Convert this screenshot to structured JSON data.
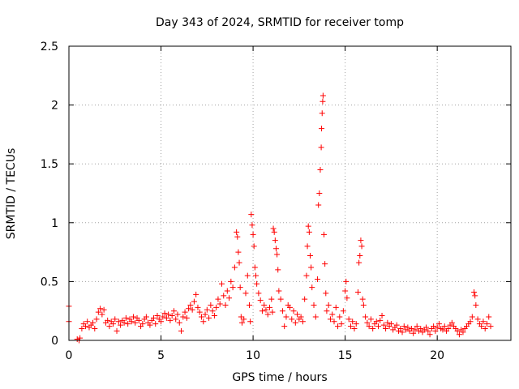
{
  "chart_data": {
    "type": "scatter",
    "title": "Day 343 of 2024, SRMTID for receiver tomp",
    "xlabel": "GPS time / hours",
    "ylabel": "SRMTID / TECUs",
    "xlim": [
      0,
      24
    ],
    "ylim": [
      0,
      2.5
    ],
    "grid": true,
    "marker": "+",
    "series_color": "#ff0000",
    "xticks": [
      {
        "value": 0,
        "label": "0"
      },
      {
        "value": 5,
        "label": "5"
      },
      {
        "value": 10,
        "label": "10"
      },
      {
        "value": 15,
        "label": "15"
      },
      {
        "value": 20,
        "label": "20"
      }
    ],
    "yticks": [
      {
        "value": 0,
        "label": "0"
      },
      {
        "value": 0.5,
        "label": "0.5"
      },
      {
        "value": 1,
        "label": "1"
      },
      {
        "value": 1.5,
        "label": "1.5"
      },
      {
        "value": 2,
        "label": "2"
      },
      {
        "value": 2.5,
        "label": "2.5"
      }
    ],
    "series": [
      {
        "name": "SRMTID",
        "points": [
          [
            0.0,
            0.29
          ],
          [
            0.0,
            0.16
          ],
          [
            0.45,
            0.01
          ],
          [
            0.55,
            0.0
          ],
          [
            0.6,
            0.02
          ],
          [
            0.7,
            0.1
          ],
          [
            0.8,
            0.14
          ],
          [
            0.9,
            0.12
          ],
          [
            1.0,
            0.16
          ],
          [
            1.1,
            0.11
          ],
          [
            1.2,
            0.13
          ],
          [
            1.3,
            0.15
          ],
          [
            1.4,
            0.1
          ],
          [
            1.5,
            0.18
          ],
          [
            1.6,
            0.24
          ],
          [
            1.7,
            0.27
          ],
          [
            1.8,
            0.22
          ],
          [
            1.9,
            0.26
          ],
          [
            2.0,
            0.15
          ],
          [
            2.1,
            0.17
          ],
          [
            2.2,
            0.12
          ],
          [
            2.3,
            0.16
          ],
          [
            2.4,
            0.14
          ],
          [
            2.5,
            0.18
          ],
          [
            2.6,
            0.08
          ],
          [
            2.7,
            0.16
          ],
          [
            2.8,
            0.13
          ],
          [
            2.9,
            0.17
          ],
          [
            3.0,
            0.15
          ],
          [
            3.1,
            0.19
          ],
          [
            3.2,
            0.14
          ],
          [
            3.3,
            0.18
          ],
          [
            3.4,
            0.16
          ],
          [
            3.5,
            0.2
          ],
          [
            3.6,
            0.15
          ],
          [
            3.7,
            0.19
          ],
          [
            3.8,
            0.17
          ],
          [
            3.9,
            0.12
          ],
          [
            4.0,
            0.14
          ],
          [
            4.1,
            0.18
          ],
          [
            4.2,
            0.2
          ],
          [
            4.3,
            0.15
          ],
          [
            4.4,
            0.13
          ],
          [
            4.5,
            0.17
          ],
          [
            4.6,
            0.19
          ],
          [
            4.7,
            0.14
          ],
          [
            4.8,
            0.21
          ],
          [
            4.9,
            0.18
          ],
          [
            5.0,
            0.16
          ],
          [
            5.1,
            0.2
          ],
          [
            5.2,
            0.23
          ],
          [
            5.3,
            0.19
          ],
          [
            5.4,
            0.22
          ],
          [
            5.5,
            0.17
          ],
          [
            5.6,
            0.21
          ],
          [
            5.7,
            0.25
          ],
          [
            5.8,
            0.18
          ],
          [
            5.9,
            0.22
          ],
          [
            6.0,
            0.15
          ],
          [
            6.1,
            0.08
          ],
          [
            6.2,
            0.2
          ],
          [
            6.3,
            0.24
          ],
          [
            6.4,
            0.19
          ],
          [
            6.5,
            0.27
          ],
          [
            6.6,
            0.3
          ],
          [
            6.7,
            0.26
          ],
          [
            6.8,
            0.33
          ],
          [
            6.9,
            0.39
          ],
          [
            7.0,
            0.28
          ],
          [
            7.1,
            0.24
          ],
          [
            7.2,
            0.2
          ],
          [
            7.3,
            0.16
          ],
          [
            7.4,
            0.22
          ],
          [
            7.5,
            0.26
          ],
          [
            7.6,
            0.19
          ],
          [
            7.7,
            0.3
          ],
          [
            7.8,
            0.25
          ],
          [
            7.9,
            0.21
          ],
          [
            8.0,
            0.28
          ],
          [
            8.1,
            0.35
          ],
          [
            8.2,
            0.31
          ],
          [
            8.3,
            0.48
          ],
          [
            8.4,
            0.38
          ],
          [
            8.5,
            0.3
          ],
          [
            8.6,
            0.42
          ],
          [
            8.7,
            0.36
          ],
          [
            8.8,
            0.5
          ],
          [
            8.9,
            0.45
          ],
          [
            9.0,
            0.62
          ],
          [
            9.1,
            0.92
          ],
          [
            9.15,
            0.88
          ],
          [
            9.2,
            0.75
          ],
          [
            9.25,
            0.66
          ],
          [
            9.3,
            0.45
          ],
          [
            9.35,
            0.2
          ],
          [
            9.4,
            0.15
          ],
          [
            9.5,
            0.18
          ],
          [
            9.6,
            0.4
          ],
          [
            9.7,
            0.55
          ],
          [
            9.8,
            0.3
          ],
          [
            9.85,
            0.16
          ],
          [
            9.9,
            1.07
          ],
          [
            9.95,
            0.98
          ],
          [
            10.0,
            0.9
          ],
          [
            10.05,
            0.8
          ],
          [
            10.1,
            0.62
          ],
          [
            10.15,
            0.55
          ],
          [
            10.2,
            0.48
          ],
          [
            10.3,
            0.4
          ],
          [
            10.4,
            0.34
          ],
          [
            10.5,
            0.25
          ],
          [
            10.6,
            0.3
          ],
          [
            10.7,
            0.26
          ],
          [
            10.8,
            0.22
          ],
          [
            10.9,
            0.28
          ],
          [
            11.0,
            0.35
          ],
          [
            11.05,
            0.24
          ],
          [
            11.1,
            0.95
          ],
          [
            11.15,
            0.92
          ],
          [
            11.2,
            0.85
          ],
          [
            11.25,
            0.78
          ],
          [
            11.3,
            0.73
          ],
          [
            11.35,
            0.6
          ],
          [
            11.4,
            0.42
          ],
          [
            11.5,
            0.35
          ],
          [
            11.6,
            0.25
          ],
          [
            11.7,
            0.12
          ],
          [
            11.8,
            0.2
          ],
          [
            11.9,
            0.3
          ],
          [
            12.0,
            0.28
          ],
          [
            12.1,
            0.18
          ],
          [
            12.2,
            0.25
          ],
          [
            12.3,
            0.15
          ],
          [
            12.4,
            0.22
          ],
          [
            12.5,
            0.18
          ],
          [
            12.6,
            0.2
          ],
          [
            12.7,
            0.16
          ],
          [
            12.8,
            0.35
          ],
          [
            12.9,
            0.55
          ],
          [
            12.95,
            0.8
          ],
          [
            13.0,
            0.97
          ],
          [
            13.05,
            0.92
          ],
          [
            13.1,
            0.72
          ],
          [
            13.15,
            0.62
          ],
          [
            13.2,
            0.45
          ],
          [
            13.3,
            0.3
          ],
          [
            13.4,
            0.2
          ],
          [
            13.5,
            0.52
          ],
          [
            13.55,
            1.15
          ],
          [
            13.6,
            1.25
          ],
          [
            13.65,
            1.45
          ],
          [
            13.7,
            1.64
          ],
          [
            13.72,
            1.8
          ],
          [
            13.75,
            1.93
          ],
          [
            13.78,
            2.03
          ],
          [
            13.8,
            2.08
          ],
          [
            13.85,
            0.9
          ],
          [
            13.9,
            0.65
          ],
          [
            13.95,
            0.4
          ],
          [
            14.0,
            0.25
          ],
          [
            14.1,
            0.3
          ],
          [
            14.2,
            0.18
          ],
          [
            14.3,
            0.22
          ],
          [
            14.4,
            0.16
          ],
          [
            14.5,
            0.28
          ],
          [
            14.6,
            0.12
          ],
          [
            14.7,
            0.2
          ],
          [
            14.8,
            0.14
          ],
          [
            14.9,
            0.25
          ],
          [
            15.0,
            0.42
          ],
          [
            15.05,
            0.5
          ],
          [
            15.1,
            0.36
          ],
          [
            15.2,
            0.18
          ],
          [
            15.3,
            0.12
          ],
          [
            15.4,
            0.16
          ],
          [
            15.5,
            0.1
          ],
          [
            15.6,
            0.14
          ],
          [
            15.7,
            0.41
          ],
          [
            15.75,
            0.66
          ],
          [
            15.8,
            0.72
          ],
          [
            15.85,
            0.85
          ],
          [
            15.9,
            0.8
          ],
          [
            15.95,
            0.35
          ],
          [
            16.0,
            0.3
          ],
          [
            16.1,
            0.2
          ],
          [
            16.2,
            0.15
          ],
          [
            16.3,
            0.12
          ],
          [
            16.4,
            0.18
          ],
          [
            16.5,
            0.1
          ],
          [
            16.6,
            0.14
          ],
          [
            16.7,
            0.16
          ],
          [
            16.8,
            0.12
          ],
          [
            16.9,
            0.17
          ],
          [
            17.0,
            0.21
          ],
          [
            17.1,
            0.13
          ],
          [
            17.2,
            0.1
          ],
          [
            17.3,
            0.15
          ],
          [
            17.4,
            0.12
          ],
          [
            17.5,
            0.14
          ],
          [
            17.6,
            0.09
          ],
          [
            17.7,
            0.11
          ],
          [
            17.8,
            0.13
          ],
          [
            17.9,
            0.08
          ],
          [
            18.0,
            0.1
          ],
          [
            18.1,
            0.07
          ],
          [
            18.2,
            0.12
          ],
          [
            18.3,
            0.09
          ],
          [
            18.4,
            0.11
          ],
          [
            18.5,
            0.08
          ],
          [
            18.6,
            0.1
          ],
          [
            18.7,
            0.06
          ],
          [
            18.8,
            0.09
          ],
          [
            18.9,
            0.12
          ],
          [
            19.0,
            0.08
          ],
          [
            19.1,
            0.1
          ],
          [
            19.2,
            0.07
          ],
          [
            19.3,
            0.09
          ],
          [
            19.4,
            0.11
          ],
          [
            19.5,
            0.08
          ],
          [
            19.6,
            0.05
          ],
          [
            19.7,
            0.1
          ],
          [
            19.8,
            0.12
          ],
          [
            19.9,
            0.08
          ],
          [
            20.0,
            0.11
          ],
          [
            20.1,
            0.14
          ],
          [
            20.2,
            0.1
          ],
          [
            20.3,
            0.09
          ],
          [
            20.4,
            0.12
          ],
          [
            20.5,
            0.08
          ],
          [
            20.6,
            0.1
          ],
          [
            20.7,
            0.13
          ],
          [
            20.8,
            0.15
          ],
          [
            20.9,
            0.12
          ],
          [
            21.0,
            0.1
          ],
          [
            21.1,
            0.08
          ],
          [
            21.2,
            0.05
          ],
          [
            21.3,
            0.09
          ],
          [
            21.4,
            0.07
          ],
          [
            21.5,
            0.1
          ],
          [
            21.6,
            0.12
          ],
          [
            21.7,
            0.14
          ],
          [
            21.8,
            0.16
          ],
          [
            21.9,
            0.2
          ],
          [
            22.0,
            0.41
          ],
          [
            22.05,
            0.38
          ],
          [
            22.1,
            0.3
          ],
          [
            22.2,
            0.18
          ],
          [
            22.3,
            0.14
          ],
          [
            22.4,
            0.12
          ],
          [
            22.5,
            0.16
          ],
          [
            22.6,
            0.1
          ],
          [
            22.7,
            0.14
          ],
          [
            22.8,
            0.2
          ],
          [
            22.9,
            0.12
          ]
        ]
      }
    ]
  }
}
